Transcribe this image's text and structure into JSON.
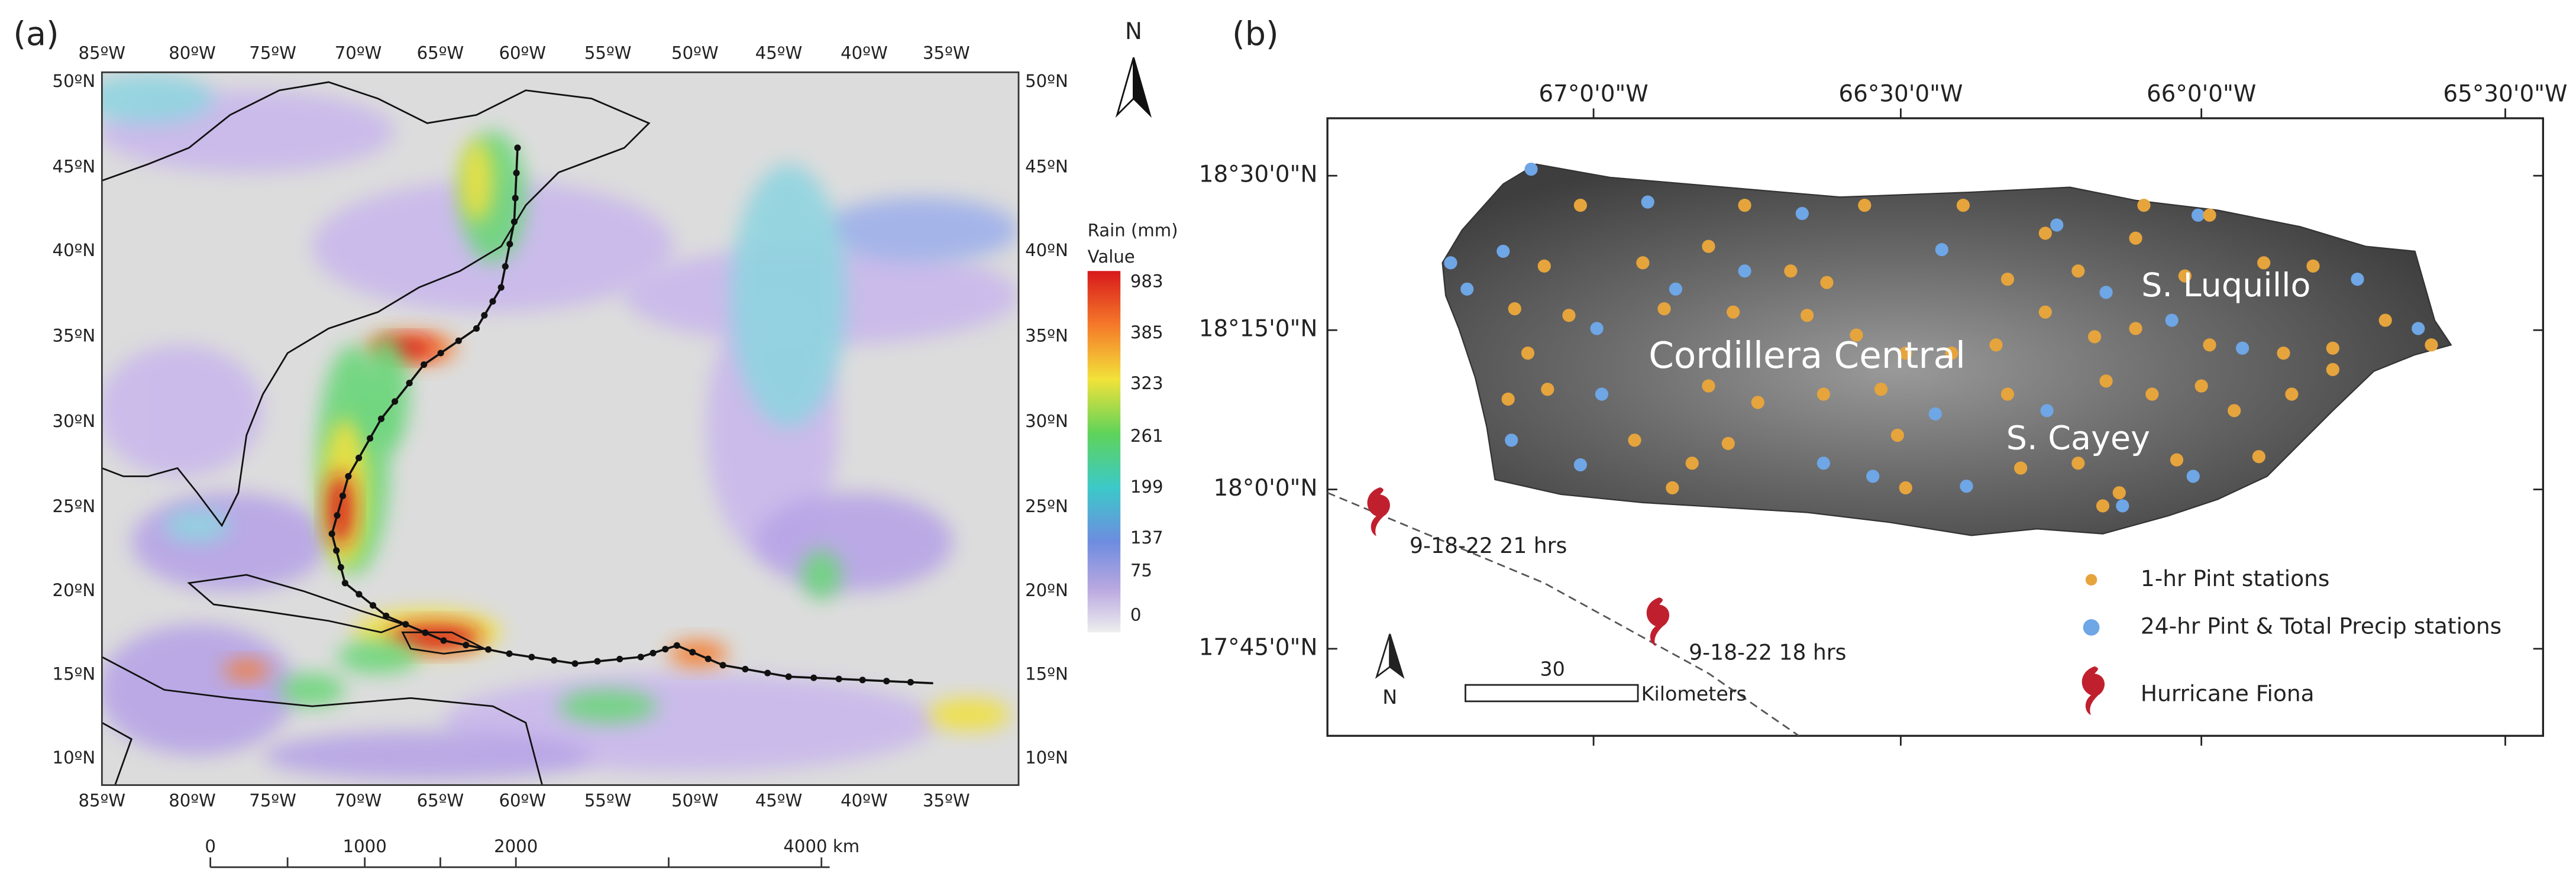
{
  "panels": [
    {
      "label": "(a)",
      "lon_labels": [
        "85ºW",
        "80ºW",
        "75ºW",
        "70ºW",
        "65ºW",
        "60ºW",
        "55ºW",
        "50ºW",
        "45ºW",
        "40ºW",
        "35ºW"
      ],
      "lat_labels": [
        "50ºN",
        "45ºN",
        "40ºN",
        "35ºN",
        "30ºN",
        "25ºN",
        "20ºN",
        "15ºN",
        "10ºN"
      ],
      "north": "N",
      "legend": {
        "title": "Rain (mm)",
        "subtitle": "Value",
        "labels": [
          "983",
          "385",
          "323",
          "261",
          "199",
          "137",
          "75",
          "0"
        ]
      },
      "scale": {
        "labels": [
          "0",
          "1000",
          "2000",
          "4000 km"
        ]
      }
    },
    {
      "label": "(b)",
      "lon_labels": [
        "67°0'0\"W",
        "66°30'0\"W",
        "66°0'0\"W",
        "65°30'0\"W"
      ],
      "lat_labels": [
        "18°30'0\"N",
        "18°15'0\"N",
        "18°0'0\"N",
        "17°45'0\"N"
      ],
      "regions": [
        "Cordillera Central",
        "S. Luquillo",
        "S. Cayey"
      ],
      "track_labels": [
        "9-18-22 21 hrs",
        "9-18-22 18 hrs"
      ],
      "north": "N",
      "scale": {
        "value": "30",
        "unit": "Kilometers"
      },
      "legend": [
        "1-hr Pint stations",
        "24-hr Pint & Total Precip stations",
        "Hurricane Fiona"
      ]
    }
  ]
}
